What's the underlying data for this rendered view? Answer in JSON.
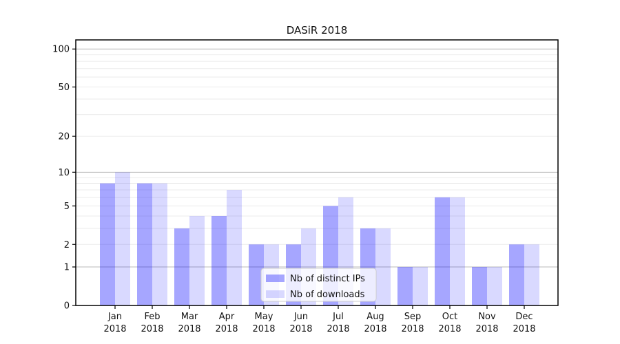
{
  "chart_data": {
    "type": "bar",
    "title": "DASiR 2018",
    "categories": [
      "Jan",
      "Feb",
      "Mar",
      "Apr",
      "May",
      "Jun",
      "Jul",
      "Aug",
      "Sep",
      "Oct",
      "Nov",
      "Dec"
    ],
    "year": "2018",
    "series": [
      {
        "name": "Nb of distinct IPs",
        "values": [
          8,
          8,
          3,
          4,
          2,
          2,
          5,
          3,
          1,
          6,
          1,
          2
        ],
        "color": "rgba(0,0,255,0.35)"
      },
      {
        "name": "Nb of downloads",
        "values": [
          10,
          8,
          4,
          7,
          2,
          3,
          6,
          3,
          1,
          6,
          1,
          2
        ],
        "color": "rgba(0,0,255,0.15)"
      }
    ],
    "xlabel": "",
    "ylabel": "",
    "yscale": "log1p",
    "ylim": [
      0,
      118
    ],
    "y_ticks": [
      0,
      1,
      2,
      5,
      10,
      20,
      50,
      100
    ],
    "y_major_gridlines": [
      1,
      10,
      100
    ],
    "y_minor_gridlines": [
      2,
      3,
      4,
      5,
      6,
      7,
      8,
      9,
      20,
      30,
      40,
      50,
      60,
      70,
      80,
      90
    ],
    "grid": "horizontal",
    "legend_position": "lower center",
    "colors": {
      "major_grid": "#b8b8b8",
      "minor_grid": "#ebebeb",
      "spine": "#000000",
      "text": "#111111"
    }
  }
}
